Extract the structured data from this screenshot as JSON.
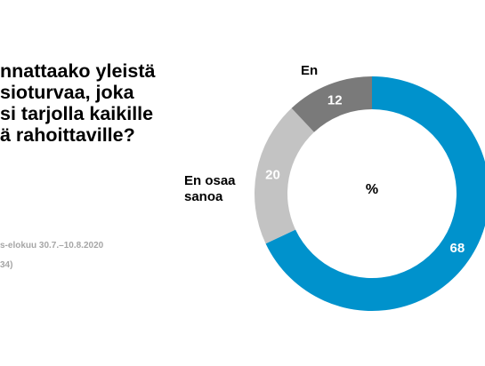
{
  "question": {
    "lines": [
      "nnattaako yleistä",
      "sioturvaa, joka",
      "si tarjolla kaikille",
      "ä rahoittaville?"
    ]
  },
  "meta": {
    "period": "s-elokuu 30.7.–10.8.2020",
    "sample": "34)"
  },
  "chart_data": {
    "type": "pie",
    "center_label": "%",
    "slices": [
      {
        "label": "",
        "value": 68,
        "color": "#0092cc"
      },
      {
        "label": "En osaa sanoa",
        "value": 20,
        "color": "#c3c3c3"
      },
      {
        "label": "En",
        "value": 12,
        "color": "#7a7a7a"
      }
    ],
    "start": "top",
    "direction": "clockwise"
  }
}
